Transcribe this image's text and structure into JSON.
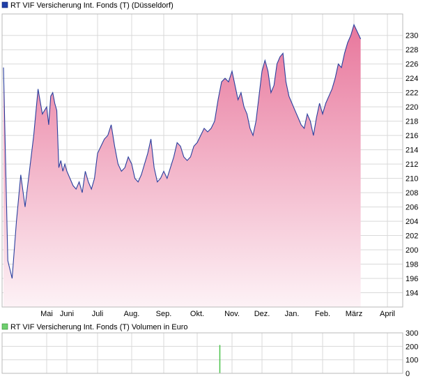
{
  "colors": {
    "price_legend": "#1f3fa8",
    "volume_legend": "#6fcf6f",
    "line": "#2a3f9e",
    "fill_top": "#e8779c",
    "fill_bottom": "#fdf2f6",
    "grid": "#d9d9d9",
    "volume_bar": "#49c249"
  },
  "chart_data": [
    {
      "type": "area",
      "title": "RT VIF Versicherung Int. Fonds (T) (Düsseldorf)",
      "categories": [
        "Mai",
        "Juni",
        "Juli",
        "Aug.",
        "Sep.",
        "Okt.",
        "Nov.",
        "Dez.",
        "Jan.",
        "Feb.",
        "März",
        "April"
      ],
      "ylim": [
        192,
        233
      ],
      "yticks": [
        194,
        196,
        198,
        200,
        202,
        204,
        206,
        208,
        210,
        212,
        214,
        216,
        218,
        220,
        222,
        224,
        226,
        228,
        230
      ],
      "grid": true,
      "series": [
        {
          "x": [
            0.0,
            0.1,
            0.2,
            0.3,
            0.4,
            0.5,
            0.6,
            0.7,
            0.8,
            0.9,
            1.0,
            1.1,
            1.2,
            1.3,
            1.4,
            1.5,
            1.6,
            1.7,
            1.8,
            1.9,
            2.0,
            2.1,
            2.2,
            2.3,
            2.4,
            2.5,
            2.6,
            2.7,
            2.8,
            2.9,
            3.0,
            3.1,
            3.2,
            3.3,
            3.4,
            3.5,
            3.6,
            3.7,
            3.8,
            3.9,
            4.0,
            4.1,
            4.2,
            4.3,
            4.4,
            4.5,
            4.6,
            4.7,
            4.8,
            4.9,
            5.0,
            5.1,
            5.2,
            5.3,
            5.4,
            5.5,
            5.6,
            5.7,
            5.8,
            5.9,
            6.0,
            6.1,
            6.2,
            6.3,
            6.4,
            6.5,
            6.6,
            6.7,
            6.8,
            6.9,
            7.0,
            7.1,
            7.2,
            7.3,
            7.4,
            7.5,
            7.6,
            7.7,
            7.8,
            7.9,
            8.0,
            8.1,
            8.2,
            8.3,
            8.4,
            8.5,
            8.6,
            8.7,
            8.8,
            8.9,
            9.0,
            9.1,
            9.2,
            9.3,
            9.4,
            9.5,
            9.6,
            9.7,
            9.8,
            9.9,
            10.0,
            10.1,
            10.2,
            10.3,
            10.4,
            10.5,
            10.6,
            10.7,
            10.8,
            10.9,
            11.0,
            11.1,
            11.2
          ],
          "values": [
            225.5,
            198.5,
            196.0,
            204.0,
            210.5,
            206.0,
            211.0,
            216.0,
            222.5,
            219.0,
            220.0,
            217.5,
            221.5,
            222.0,
            220.5,
            219.5,
            211.5,
            212.5,
            211.0,
            212.0,
            211.0,
            210.0,
            209.0,
            208.5,
            209.5,
            208.0,
            211.0,
            209.5,
            208.5,
            210.0,
            213.5,
            214.5,
            215.5,
            216.0,
            217.5,
            214.5,
            212.0,
            211.0,
            211.5,
            213.0,
            212.0,
            210.0,
            209.5,
            210.5,
            212.0,
            213.5,
            215.5,
            211.5,
            209.5,
            210.0,
            211.0,
            210.0,
            211.5,
            213.0,
            215.0,
            214.5,
            213.0,
            212.5,
            213.0,
            214.5,
            215.0,
            216.0,
            217.0,
            216.5,
            217.0,
            218.0,
            221.0,
            223.5,
            224.0,
            223.5,
            225.0,
            223.0,
            221.0,
            222.0,
            220.0,
            219.0,
            217.0,
            216.0,
            218.0,
            221.5,
            225.0,
            226.5,
            225.0,
            222.0,
            223.0,
            226.0,
            227.0,
            227.5,
            223.5,
            221.5,
            220.5,
            219.5,
            218.5,
            217.5,
            217.0,
            219.0,
            218.0,
            216.0,
            218.5,
            220.5,
            219.0,
            220.5,
            221.5,
            222.5,
            224.0,
            226.0,
            225.5,
            227.5,
            229.0,
            230.0,
            231.5,
            230.5,
            229.5
          ]
        }
      ]
    },
    {
      "type": "bar",
      "title": "RT VIF Versicherung Int. Fonds (T) Volumen in Euro",
      "ylim": [
        0,
        300
      ],
      "yticks": [
        0,
        100,
        200,
        300
      ],
      "grid": true,
      "bars": [
        {
          "x": 6.65,
          "value": 210
        }
      ]
    }
  ]
}
